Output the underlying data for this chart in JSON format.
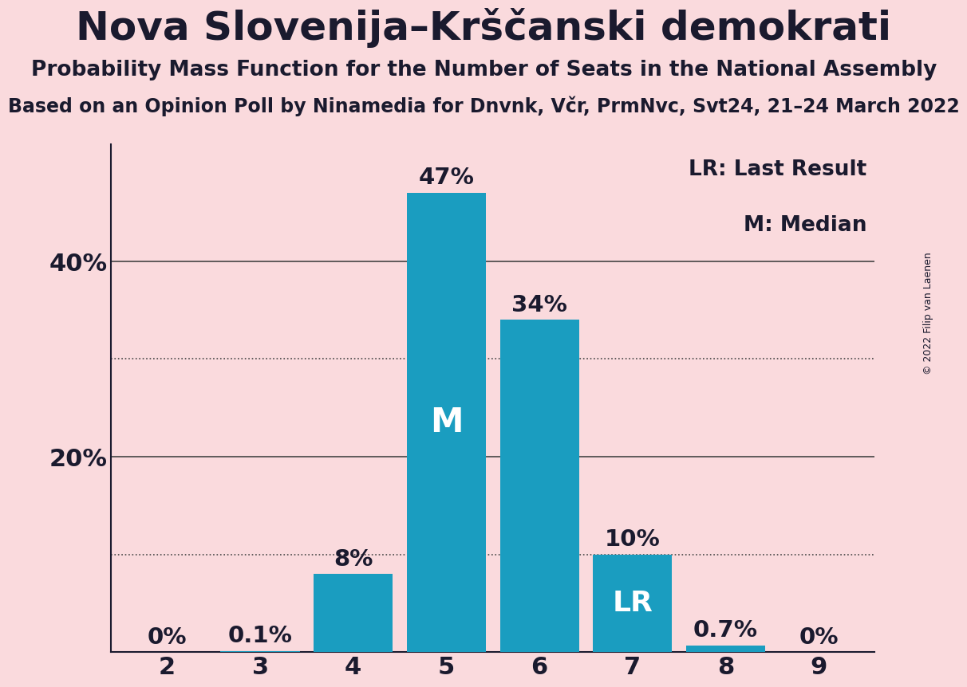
{
  "title": "Nova Slovenija–Krščanski demokrati",
  "subtitle1": "Probability Mass Function for the Number of Seats in the National Assembly",
  "subtitle2": "Based on an Opinion Poll by Ninamedia for Dnvnk, Včr, PrmNvc, Svt24, 21–24 March 2022",
  "copyright": "© 2022 Filip van Laenen",
  "categories": [
    2,
    3,
    4,
    5,
    6,
    7,
    8,
    9
  ],
  "values": [
    0.0,
    0.1,
    8.0,
    47.0,
    34.0,
    10.0,
    0.7,
    0.0
  ],
  "bar_color": "#1a9dc0",
  "background_color": "#fadadd",
  "label_above": [
    "0%",
    "0.1%",
    "8%",
    "47%",
    "34%",
    "10%",
    "0.7%",
    "0%"
  ],
  "median_bar": 5,
  "lr_bar": 7,
  "legend_lr": "LR: Last Result",
  "legend_m": "M: Median",
  "yticks": [
    0,
    20,
    40
  ],
  "ytick_labels": [
    "",
    "20%",
    "40%"
  ],
  "ylim": [
    0,
    52
  ],
  "dotted_lines": [
    10,
    30
  ],
  "solid_lines": [
    20,
    40
  ],
  "title_fontsize": 36,
  "subtitle1_fontsize": 19,
  "subtitle2_fontsize": 17,
  "bar_label_fontsize": 21,
  "tick_fontsize": 22,
  "legend_fontsize": 19,
  "m_fontsize": 30,
  "lr_fontsize": 26
}
